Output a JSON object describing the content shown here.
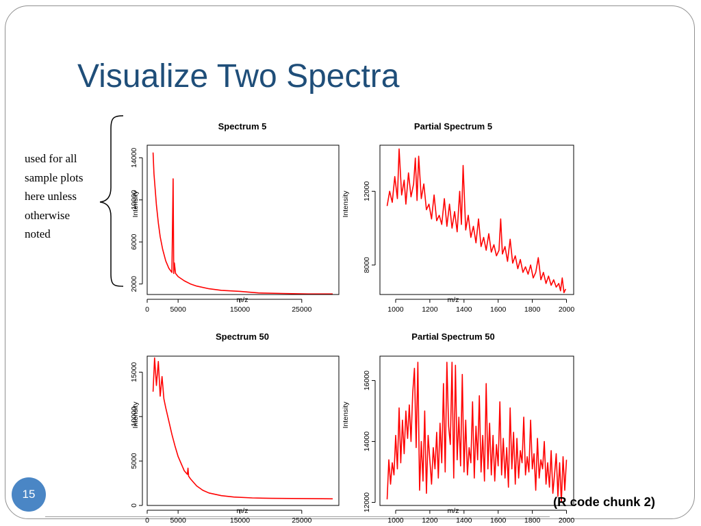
{
  "slide": {
    "title": "Visualize Two Spectra",
    "note_lines": [
      "used for all",
      "sample plots",
      "here unless",
      "otherwise",
      "noted"
    ],
    "slide_number": "15",
    "footer_note": "(R code chunk 2)",
    "title_color": "#1f4e79",
    "accent_color": "#4a86c5"
  },
  "chart_data": [
    {
      "type": "line",
      "title": "Spectrum 5",
      "xlabel": "m/z",
      "ylabel": "Intensity",
      "color": "#ff0000",
      "xlim": [
        0,
        31000
      ],
      "ylim": [
        1000,
        15200
      ],
      "xticks": [
        0,
        5000,
        15000,
        25000
      ],
      "xtick_labels": [
        "0",
        "5000",
        "15000",
        "25000"
      ],
      "yticks": [
        2000,
        6000,
        10000,
        14000
      ],
      "ytick_labels": [
        "2000",
        "6000",
        "10000",
        "14000"
      ],
      "series": [
        {
          "x": [
            950,
            1100,
            1300,
            1500,
            1800,
            2100,
            2500,
            3000,
            3500,
            4000,
            4200,
            4300,
            4400,
            4600,
            5000,
            6000,
            7000,
            8000,
            10000,
            12000,
            15000,
            18000,
            22000,
            26000,
            30000
          ],
          "y": [
            14500,
            12500,
            11000,
            9500,
            7800,
            6500,
            5300,
            4200,
            3500,
            3100,
            12000,
            3000,
            4000,
            3000,
            2700,
            2300,
            2000,
            1800,
            1550,
            1400,
            1300,
            1150,
            1100,
            1050,
            1050
          ]
        }
      ]
    },
    {
      "type": "line",
      "title": "Partial Spectrum 5",
      "xlabel": "m/z",
      "ylabel": "Intensity",
      "color": "#ff0000",
      "xlim": [
        908,
        2042
      ],
      "ylim": [
        6400,
        14500
      ],
      "xticks": [
        1000,
        1200,
        1400,
        1600,
        1800,
        2000
      ],
      "xtick_labels": [
        "1000",
        "1200",
        "1400",
        "1600",
        "1800",
        "2000"
      ],
      "yticks": [
        8000,
        12000
      ],
      "ytick_labels": [
        "8000",
        "12000"
      ],
      "series": [
        {
          "x": [
            950,
            965,
            980,
            995,
            1010,
            1020,
            1035,
            1050,
            1060,
            1075,
            1090,
            1105,
            1115,
            1125,
            1135,
            1150,
            1165,
            1180,
            1195,
            1210,
            1225,
            1240,
            1255,
            1270,
            1285,
            1300,
            1315,
            1330,
            1345,
            1360,
            1375,
            1385,
            1395,
            1410,
            1425,
            1440,
            1455,
            1470,
            1485,
            1500,
            1515,
            1530,
            1545,
            1560,
            1575,
            1590,
            1605,
            1615,
            1625,
            1640,
            1655,
            1670,
            1685,
            1700,
            1715,
            1730,
            1745,
            1760,
            1775,
            1790,
            1805,
            1820,
            1835,
            1850,
            1865,
            1880,
            1895,
            1910,
            1925,
            1940,
            1955,
            1965,
            1975,
            1985,
            1995
          ],
          "y": [
            11200,
            12000,
            11400,
            12800,
            11600,
            14300,
            11800,
            12600,
            11300,
            13000,
            11700,
            12400,
            13800,
            11500,
            13900,
            11600,
            12400,
            11000,
            11300,
            10500,
            11800,
            10400,
            10700,
            10200,
            11600,
            10100,
            11300,
            10000,
            10900,
            9800,
            12000,
            10200,
            13400,
            9900,
            10700,
            9500,
            10100,
            9200,
            10500,
            9000,
            9500,
            8800,
            9700,
            8700,
            9100,
            8500,
            8800,
            10500,
            8600,
            9000,
            8200,
            9400,
            8100,
            8500,
            7800,
            8300,
            7600,
            7900,
            7500,
            8000,
            7300,
            7600,
            8400,
            7200,
            7600,
            7000,
            7400,
            6900,
            7200,
            6800,
            7000,
            6600,
            7300,
            6500,
            6700
          ]
        }
      ]
    },
    {
      "type": "line",
      "title": "Spectrum 50",
      "xlabel": "m/z",
      "ylabel": "Intensity",
      "color": "#ff0000",
      "xlim": [
        0,
        31000
      ],
      "ylim": [
        0,
        16800
      ],
      "xticks": [
        0,
        5000,
        15000,
        25000
      ],
      "xtick_labels": [
        "0",
        "5000",
        "15000",
        "25000"
      ],
      "yticks": [
        0,
        5000,
        10000,
        15000
      ],
      "ytick_labels": [
        "0",
        "5000",
        "10000",
        "15000"
      ],
      "series": [
        {
          "x": [
            950,
            1200,
            1500,
            1800,
            2100,
            2400,
            2700,
            3000,
            3500,
            4000,
            4500,
            5000,
            5500,
            6000,
            6500,
            6600,
            6700,
            7000,
            8000,
            9000,
            10000,
            12000,
            14000,
            17000,
            20000,
            25000,
            30000
          ],
          "y": [
            12800,
            16600,
            13500,
            16200,
            12300,
            14500,
            12000,
            11000,
            9500,
            8000,
            6700,
            5500,
            4700,
            3900,
            3500,
            4200,
            3300,
            3000,
            2200,
            1700,
            1400,
            1100,
            950,
            850,
            800,
            780,
            750
          ]
        }
      ]
    },
    {
      "type": "line",
      "title": "Partial Spectrum 50",
      "xlabel": "m/z",
      "ylabel": "Intensity",
      "color": "#ff0000",
      "xlim": [
        908,
        2042
      ],
      "ylim": [
        11900,
        16800
      ],
      "xticks": [
        1000,
        1200,
        1400,
        1600,
        1800,
        2000
      ],
      "xtick_labels": [
        "1000",
        "1200",
        "1400",
        "1600",
        "1800",
        "2000"
      ],
      "yticks": [
        12000,
        14000,
        16000
      ],
      "ytick_labels": [
        "12000",
        "14000",
        "16000"
      ],
      "series": [
        {
          "x": [
            950,
            960,
            970,
            980,
            990,
            1000,
            1010,
            1020,
            1030,
            1040,
            1050,
            1060,
            1070,
            1080,
            1090,
            1100,
            1110,
            1120,
            1130,
            1140,
            1150,
            1160,
            1170,
            1180,
            1190,
            1200,
            1210,
            1220,
            1230,
            1240,
            1250,
            1260,
            1270,
            1280,
            1290,
            1300,
            1310,
            1320,
            1330,
            1340,
            1350,
            1360,
            1370,
            1380,
            1390,
            1400,
            1410,
            1420,
            1430,
            1440,
            1450,
            1460,
            1470,
            1480,
            1490,
            1500,
            1510,
            1520,
            1530,
            1540,
            1550,
            1560,
            1570,
            1580,
            1590,
            1600,
            1610,
            1620,
            1630,
            1640,
            1650,
            1660,
            1670,
            1680,
            1690,
            1700,
            1710,
            1720,
            1730,
            1740,
            1750,
            1760,
            1770,
            1780,
            1790,
            1800,
            1810,
            1820,
            1830,
            1840,
            1850,
            1860,
            1870,
            1880,
            1890,
            1900,
            1910,
            1920,
            1930,
            1940,
            1950,
            1960,
            1970,
            1980,
            1990,
            2000
          ],
          "y": [
            12100,
            13400,
            12600,
            13300,
            12900,
            14200,
            13100,
            15100,
            13300,
            14700,
            13600,
            15000,
            14100,
            15200,
            14000,
            15600,
            16400,
            13800,
            16600,
            12400,
            14000,
            12700,
            15000,
            12300,
            14200,
            13400,
            12600,
            13800,
            13100,
            14300,
            12800,
            14600,
            13300,
            15900,
            13000,
            16600,
            14500,
            13900,
            16600,
            12800,
            16500,
            13400,
            14800,
            13200,
            16200,
            13000,
            14700,
            12900,
            13800,
            13300,
            15300,
            12800,
            14500,
            13400,
            15500,
            13000,
            14200,
            12700,
            15900,
            13100,
            14600,
            12900,
            14200,
            12700,
            13900,
            13200,
            15300,
            12900,
            14100,
            12800,
            13800,
            12500,
            15100,
            13100,
            14300,
            12600,
            14100,
            12800,
            13700,
            13300,
            14800,
            12900,
            13500,
            13000,
            14700,
            13100,
            13600,
            12400,
            14100,
            12800,
            13400,
            13100,
            14000,
            12600,
            13300,
            12500,
            13700,
            12300,
            12900,
            13600,
            12200,
            13300,
            12000,
            13500,
            12400,
            13400
          ]
        }
      ]
    }
  ]
}
